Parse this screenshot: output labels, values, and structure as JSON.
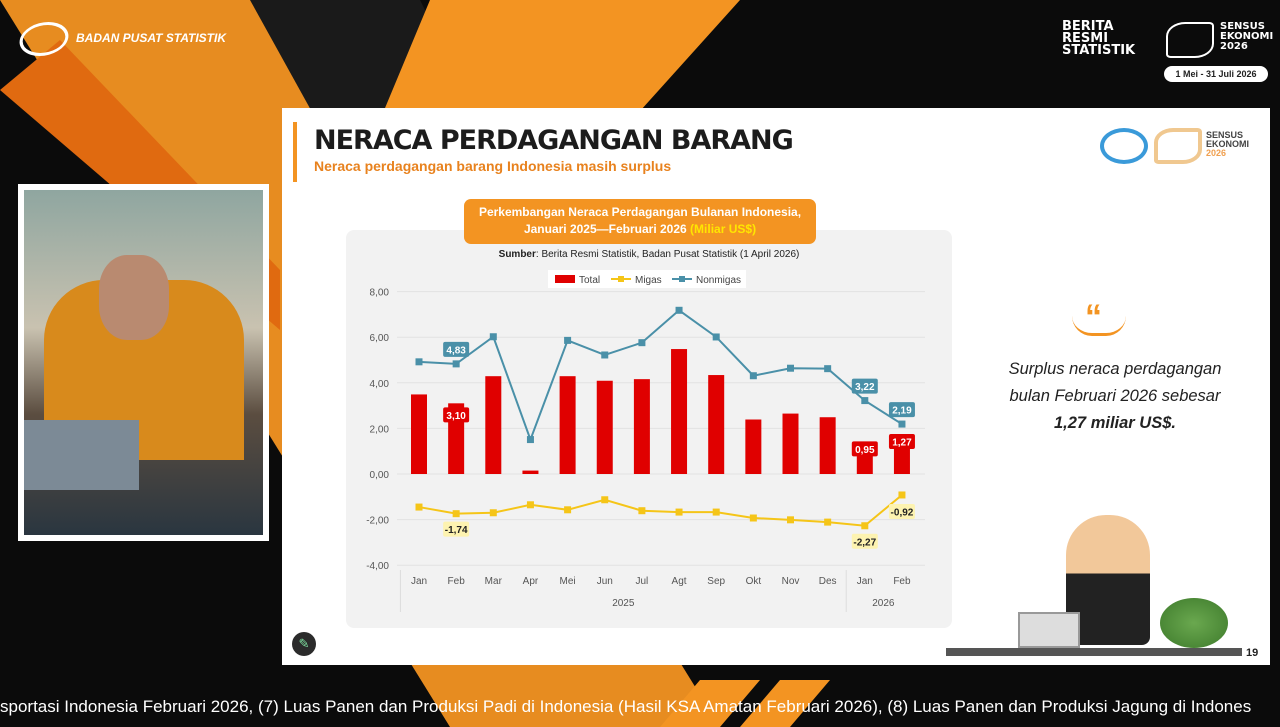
{
  "header": {
    "org_name": "BADAN PUSAT STATISTIK",
    "brs_logo": "BERITA RESMI STATISTIK",
    "sensus_logo": [
      "SENSUS",
      "EKONOMI",
      "2026"
    ],
    "sensus_dates": "1 Mei - 31 Juli 2026"
  },
  "slide": {
    "title": "NERACA PERDAGANGAN BARANG",
    "subtitle": "Neraca perdagangan barang Indonesia masih surplus",
    "quote": "Surplus neraca perdagangan bulan Februari 2026 sebesar",
    "quote_bold": "1,27 miliar US$.",
    "page_number": "19",
    "sensus_logo": [
      "SENSUS",
      "EKONOMI",
      "2026"
    ]
  },
  "ticker": "sportasi Indonesia Februari 2026, (7) Luas Panen dan Produksi Padi di Indonesia (Hasil KSA Amatan Februari 2026), (8) Luas Panen dan Produksi Jagung di Indones",
  "chart_data": {
    "type": "bar+line",
    "title_line1": "Perkembangan Neraca Perdagangan Bulanan Indonesia,",
    "title_line2": "Januari 2025—Februari 2026",
    "unit": "(Miliar US$)",
    "source_label": "Sumber",
    "source": ": Berita Resmi Statistik, Badan Pusat Statistik (1 April 2026)",
    "categories": [
      "Jan",
      "Feb",
      "Mar",
      "Apr",
      "Mei",
      "Jun",
      "Jul",
      "Agt",
      "Sep",
      "Okt",
      "Nov",
      "Des",
      "Jan",
      "Feb"
    ],
    "years": [
      {
        "label": "2025",
        "months": 12
      },
      {
        "label": "2026",
        "months": 2
      }
    ],
    "ylim": [
      -4,
      8
    ],
    "yticks": [
      "-4,00",
      "-2,00",
      "0,00",
      "2,00",
      "4,00",
      "6,00",
      "8,00"
    ],
    "legend_position": "top-center",
    "series": [
      {
        "name": "Total",
        "kind": "bar",
        "color": "#e00000",
        "values": [
          3.49,
          3.1,
          4.29,
          0.15,
          4.29,
          4.09,
          4.16,
          5.48,
          4.34,
          2.39,
          2.65,
          2.49,
          0.95,
          1.27
        ],
        "labels": {
          "1": "3,10",
          "12": "0,95",
          "13": "1,27"
        }
      },
      {
        "name": "Migas",
        "kind": "line",
        "color": "#f5c518",
        "values": [
          -1.45,
          -1.74,
          -1.7,
          -1.35,
          -1.57,
          -1.13,
          -1.61,
          -1.67,
          -1.67,
          -1.93,
          -2.01,
          -2.11,
          -2.27,
          -0.92
        ],
        "labels": {
          "1": "-1,74",
          "12": "-2,27",
          "13": "-0,92"
        }
      },
      {
        "name": "Nonmigas",
        "kind": "line",
        "color": "#4a90a8",
        "values": [
          4.92,
          4.83,
          6.02,
          1.51,
          5.86,
          5.22,
          5.76,
          7.18,
          6.01,
          4.31,
          4.64,
          4.62,
          3.22,
          2.19
        ],
        "labels": {
          "1": "4,83",
          "12": "3,22",
          "13": "2,19"
        }
      }
    ]
  }
}
